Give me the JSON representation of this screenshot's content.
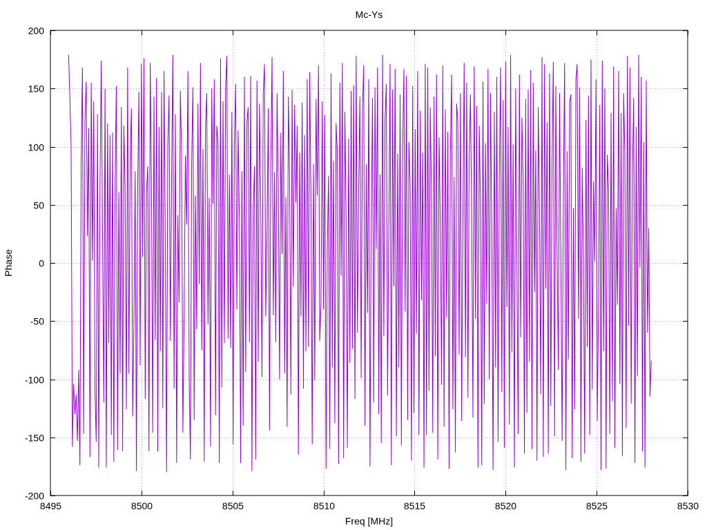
{
  "chart_data": {
    "type": "line",
    "title": "Mc-Ys",
    "xlabel": "Freq [MHz]",
    "ylabel": "Phase",
    "xlim": [
      8495,
      8530
    ],
    "ylim": [
      -200,
      200
    ],
    "xticks": [
      8495,
      8500,
      8505,
      8510,
      8515,
      8520,
      8525,
      8530
    ],
    "yticks": [
      -200,
      -150,
      -100,
      -50,
      0,
      50,
      100,
      150,
      200
    ],
    "grid": true,
    "series_color": "#9400d3",
    "series": [
      {
        "x_start": 8496.0,
        "x_end": 8528.0,
        "values": [
          179,
          142,
          100,
          -158,
          -104,
          -130,
          -113,
          -153,
          -92,
          -174,
          85,
          168,
          -147,
          121,
          156,
          23,
          116,
          -167,
          155,
          2,
          139,
          -111,
          -154,
          128,
          -176,
          69,
          174,
          26,
          -120,
          150,
          -176,
          120,
          -69,
          110,
          -148,
          112,
          -171,
          67,
          152,
          -161,
          61,
          -95,
          134,
          -162,
          118,
          62,
          -126,
          168,
          -95,
          94,
          133,
          -132,
          -52,
          79,
          -179,
          65,
          147,
          -88,
          171,
          5,
          176,
          -117,
          60,
          83,
          -162,
          172,
          63,
          -146,
          143,
          -66,
          159,
          -162,
          117,
          -76,
          147,
          -125,
          165,
          21,
          -180,
          102,
          144,
          -67,
          72,
          179,
          -108,
          128,
          -172,
          41,
          -34,
          148,
          93,
          -146,
          -45,
          92,
          33,
          165,
          -98,
          -169,
          87,
          151,
          -135,
          58,
          -57,
          137,
          -18,
          172,
          -75,
          98,
          -171,
          117,
          146,
          -53,
          56,
          -158,
          150,
          51,
          158,
          -131,
          118,
          103,
          -172,
          176,
          -107,
          139,
          -69,
          150,
          178,
          -65,
          76,
          -73,
          130,
          -156,
          101,
          154,
          -40,
          114,
          37,
          -172,
          79,
          -140,
          160,
          -94,
          121,
          134,
          -68,
          161,
          -179,
          44,
          83,
          -169,
          157,
          -85,
          137,
          53,
          -98,
          145,
          171,
          -46,
          23,
          133,
          -144,
          84,
          177,
          -45,
          78,
          -68,
          146,
          62,
          -100,
          112,
          8,
          165,
          -95,
          57,
          -141,
          143,
          73,
          -113,
          149,
          -20,
          136,
          52,
          118,
          -165,
          95,
          -46,
          138,
          -108,
          110,
          -76,
          158,
          -72,
          164,
          55,
          -156,
          85,
          -101,
          141,
          58,
          170,
          -67,
          -36,
          139,
          -40,
          127,
          -177,
          12,
          75,
          -160,
          163,
          -90,
          88,
          -138,
          120,
          95,
          -173,
          155,
          -11,
          172,
          -168,
          130,
          41,
          -159,
          107,
          -86,
          148,
          -74,
          153,
          -117,
          178,
          -60,
          64,
          143,
          -99,
          132,
          170,
          -140,
          85,
          -43,
          158,
          -175,
          28,
          142,
          -120,
          151,
          12,
          168,
          -130,
          76,
          -155,
          179,
          -63,
          124,
          154,
          -114,
          29,
          171,
          -174,
          149,
          -20,
          167,
          -149,
          94,
          -90,
          145,
          -157,
          98,
          167,
          -42,
          161,
          -135,
          104,
          66,
          -170,
          152,
          -129,
          115,
          -61,
          165,
          -148,
          131,
          -32,
          95,
          -176,
          171,
          -148,
          168,
          -110,
          134,
          60,
          -146,
          143,
          -80,
          162,
          -169,
          108,
          40,
          -105,
          170,
          -141,
          132,
          -47,
          113,
          -177,
          94,
          162,
          -126,
          74,
          -163,
          137,
          122,
          -79,
          146,
          -136,
          40,
          172,
          -81,
          155,
          -116,
          88,
          145,
          36,
          -133,
          169,
          -48,
          135,
          -176,
          118,
          52,
          -174,
          156,
          -121,
          103,
          -35,
          167,
          -100,
          146,
          27,
          -178,
          130,
          -90,
          160,
          -154,
          75,
          168,
          -111,
          140,
          -159,
          173,
          -38,
          117,
          -139,
          179,
          -77,
          102,
          -176,
          150,
          3,
          -147,
          162,
          -64,
          125,
          72,
          -164,
          141,
          -129,
          149,
          -85,
          166,
          -160,
          155,
          -25,
          97,
          -170,
          134,
          44,
          -113,
          177,
          -167,
          171,
          -22,
          121,
          -164,
          163,
          -123,
          87,
          173,
          -149,
          152,
          11,
          -92,
          146,
          0,
          -153,
          59,
          172,
          -178,
          96,
          -83,
          138,
          145,
          -168,
          47,
          -126,
          158,
          171,
          -48,
          151,
          -171,
          82,
          5,
          -164,
          123,
          -72,
          144,
          -148,
          175,
          -109,
          70,
          1,
          158,
          -136,
          -40,
          136,
          -178,
          174,
          -76,
          150,
          -177,
          93,
          63,
          -147,
          129,
          -119,
          169,
          -159,
          47,
          -36,
          165,
          -104,
          129,
          -166,
          146,
          92,
          -142,
          178,
          -54,
          168,
          -121,
          78,
          142,
          -172,
          117,
          -97,
          179,
          -4,
          160,
          -162,
          104,
          -176,
          157,
          -60,
          30,
          -115,
          -84
        ]
      }
    ]
  }
}
